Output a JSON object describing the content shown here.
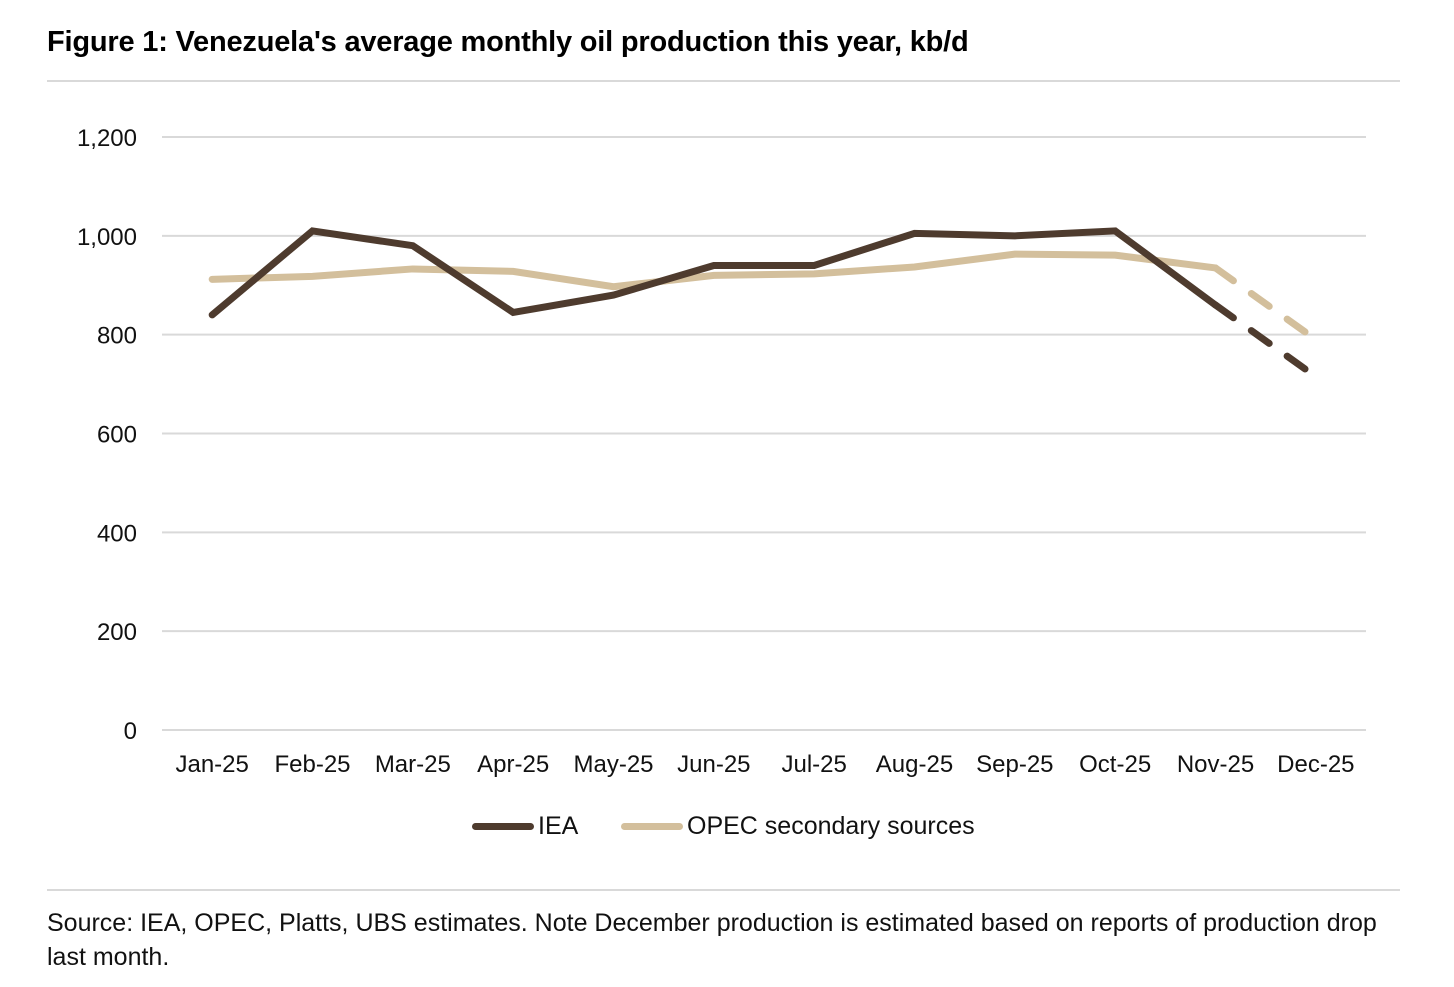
{
  "title": "Figure 1: Venezuela's average monthly oil production this year, kb/d",
  "footer": "Source: IEA, OPEC, Platts, UBS estimates. Note December production is estimated based on reports of production drop last month.",
  "colors": {
    "iea": "#4e3b2e",
    "opec": "#d3bf9c",
    "grid": "#d9d9d9",
    "text": "#111111"
  },
  "chart_data": {
    "type": "line",
    "title": "Figure 1: Venezuela's average monthly oil production this year, kb/d",
    "xlabel": "",
    "ylabel": "",
    "ylim": [
      0,
      1200
    ],
    "yticks": [
      0,
      200,
      400,
      600,
      800,
      1000,
      1200
    ],
    "ytick_labels": [
      "0",
      "200",
      "400",
      "600",
      "800",
      "1,000",
      "1,200"
    ],
    "grid": true,
    "legend_position": "bottom",
    "categories": [
      "Jan-25",
      "Feb-25",
      "Mar-25",
      "Apr-25",
      "May-25",
      "Jun-25",
      "Jul-25",
      "Aug-25",
      "Sep-25",
      "Oct-25",
      "Nov-25",
      "Dec-25"
    ],
    "series": [
      {
        "name": "IEA",
        "color": "#4e3b2e",
        "values": [
          840,
          1010,
          980,
          845,
          880,
          940,
          940,
          1005,
          1000,
          1010,
          860,
          715
        ],
        "dashed_from_index": 10
      },
      {
        "name": "OPEC secondary sources",
        "color": "#d3bf9c",
        "values": [
          912,
          918,
          933,
          928,
          897,
          920,
          923,
          937,
          963,
          961,
          935,
          790
        ],
        "dashed_from_index": 10
      }
    ]
  }
}
